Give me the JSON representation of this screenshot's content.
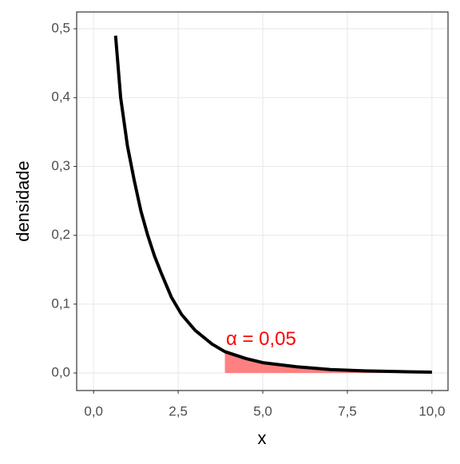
{
  "chart_data": {
    "type": "line",
    "x_label": "x",
    "y_label": "densidade",
    "x": [
      0.65,
      0.8,
      1.0,
      1.2,
      1.4,
      1.6,
      1.8,
      2.0,
      2.3,
      2.6,
      3.0,
      3.5,
      3.88,
      4.5,
      5,
      6,
      7,
      8,
      9,
      10
    ],
    "series": [
      {
        "color": "#000000",
        "values": [
          0.49,
          0.4,
          0.33,
          0.28,
          0.235,
          0.2,
          0.17,
          0.145,
          0.11,
          0.085,
          0.062,
          0.042,
          0.031,
          0.021,
          0.015,
          0.009,
          0.005,
          0.003,
          0.002,
          0.0012
        ]
      }
    ],
    "shade_from": 3.88,
    "shade_color": "#ff8080",
    "annotation": {
      "text": "α = 0,05",
      "x": 4.95,
      "y": 0.048,
      "color": "#ff0000"
    },
    "xlim": [
      -0.5,
      10.475
    ],
    "ylim": [
      -0.0255,
      0.5244
    ],
    "xticks": [
      {
        "value": 0,
        "label": "0,0"
      },
      {
        "value": 2.5,
        "label": "2,5"
      },
      {
        "value": 5,
        "label": "5,0"
      },
      {
        "value": 7.5,
        "label": "7,5"
      },
      {
        "value": 10,
        "label": "10,0"
      }
    ],
    "yticks": [
      {
        "value": 0,
        "label": "0,0"
      },
      {
        "value": 0.1,
        "label": "0,1"
      },
      {
        "value": 0.2,
        "label": "0,2"
      },
      {
        "value": 0.3,
        "label": "0,3"
      },
      {
        "value": 0.4,
        "label": "0,4"
      },
      {
        "value": 0.5,
        "label": "0,5"
      }
    ],
    "grid": true
  }
}
